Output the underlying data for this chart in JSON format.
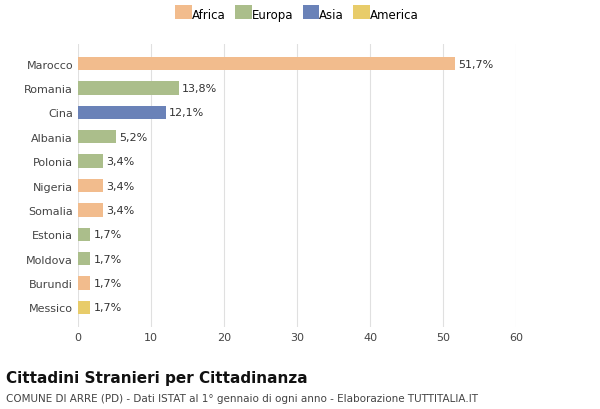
{
  "categories": [
    "Marocco",
    "Romania",
    "Cina",
    "Albania",
    "Polonia",
    "Nigeria",
    "Somalia",
    "Estonia",
    "Moldova",
    "Burundi",
    "Messico"
  ],
  "values": [
    51.7,
    13.8,
    12.1,
    5.2,
    3.4,
    3.4,
    3.4,
    1.7,
    1.7,
    1.7,
    1.7
  ],
  "labels": [
    "51,7%",
    "13,8%",
    "12,1%",
    "5,2%",
    "3,4%",
    "3,4%",
    "3,4%",
    "1,7%",
    "1,7%",
    "1,7%",
    "1,7%"
  ],
  "colors": [
    "#F2BC8D",
    "#ABBE8B",
    "#6A82B8",
    "#ABBE8B",
    "#ABBE8B",
    "#F2BC8D",
    "#F2BC8D",
    "#ABBE8B",
    "#ABBE8B",
    "#F2BC8D",
    "#E8CC6A"
  ],
  "legend_labels": [
    "Africa",
    "Europa",
    "Asia",
    "America"
  ],
  "legend_colors": [
    "#F2BC8D",
    "#ABBE8B",
    "#6A82B8",
    "#E8CC6A"
  ],
  "title": "Cittadini Stranieri per Cittadinanza",
  "subtitle": "COMUNE DI ARRE (PD) - Dati ISTAT al 1° gennaio di ogni anno - Elaborazione TUTTITALIA.IT",
  "xlim": [
    0,
    60
  ],
  "xticks": [
    0,
    10,
    20,
    30,
    40,
    50,
    60
  ],
  "background_color": "#ffffff",
  "grid_color": "#e0e0e0",
  "title_fontsize": 11,
  "subtitle_fontsize": 7.5,
  "label_fontsize": 8,
  "tick_fontsize": 8,
  "legend_fontsize": 8.5
}
